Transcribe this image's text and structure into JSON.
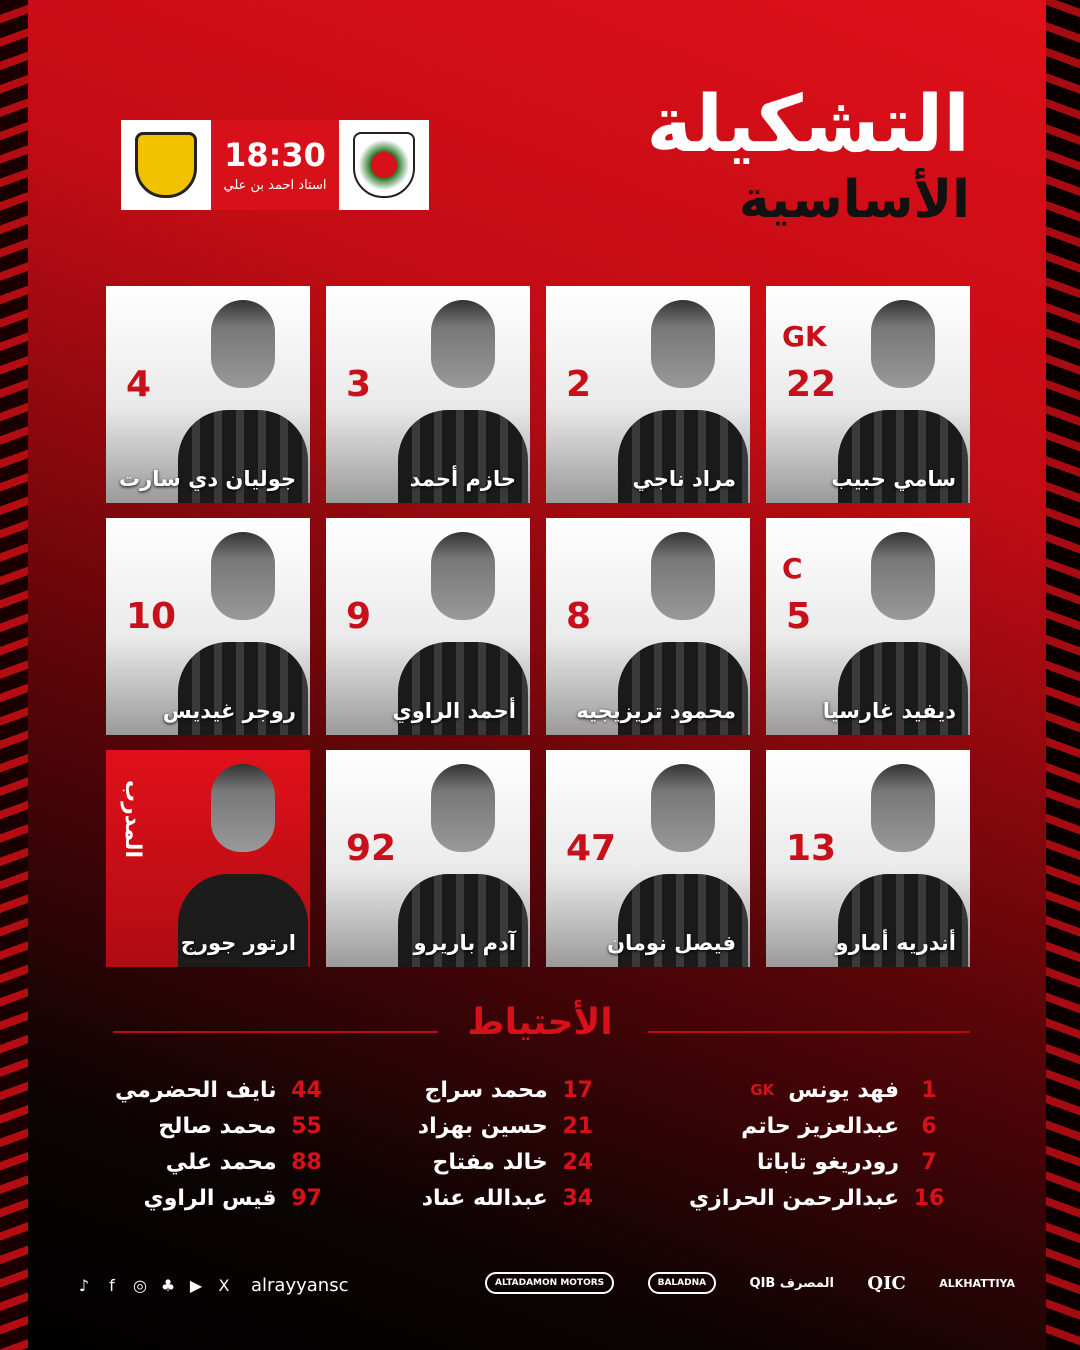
{
  "title": {
    "line1": "التشكيلة",
    "line2": "الأساسية"
  },
  "match": {
    "time": "18:30",
    "venue": "استاد احمد بن علي",
    "home_crest": "al-rayyan-crest",
    "away_crest": "qatar-sc-crest"
  },
  "starters": [
    {
      "number": "22",
      "role": "GK",
      "name": "سامي حبيب"
    },
    {
      "number": "2",
      "name": "مراد ناجي"
    },
    {
      "number": "3",
      "name": "حازم أحمد"
    },
    {
      "number": "4",
      "name": "جوليان دي سارت"
    },
    {
      "number": "5",
      "role": "C",
      "name": "ديفيد غارسيا"
    },
    {
      "number": "8",
      "name": "محمود تريزيجيه"
    },
    {
      "number": "9",
      "name": "أحمد الراوي"
    },
    {
      "number": "10",
      "name": "روجر غيديس"
    },
    {
      "number": "13",
      "name": "أندريه أمارو"
    },
    {
      "number": "47",
      "name": "فيصل نومان"
    },
    {
      "number": "92",
      "name": "آدم باريرو"
    }
  ],
  "coach": {
    "label": "المدرب",
    "name": "ارتور جورج"
  },
  "subs_title": "الأحتياط",
  "subs": [
    [
      {
        "number": "1",
        "name": "فهد يونس",
        "role": "GK"
      },
      {
        "number": "6",
        "name": "عبدالعزيز حاتم"
      },
      {
        "number": "7",
        "name": "رودريغو تاباتا"
      },
      {
        "number": "16",
        "name": "عبدالرحمن الحرازي"
      }
    ],
    [
      {
        "number": "17",
        "name": "محمد سراج"
      },
      {
        "number": "21",
        "name": "حسين بهزاد"
      },
      {
        "number": "24",
        "name": "خالد مفتاح"
      },
      {
        "number": "34",
        "name": "عبدالله عناد"
      }
    ],
    [
      {
        "number": "44",
        "name": "نايف الحضرمي"
      },
      {
        "number": "55",
        "name": "محمد صالح"
      },
      {
        "number": "88",
        "name": "محمد علي"
      },
      {
        "number": "97",
        "name": "قيس الراوي"
      }
    ]
  ],
  "social": {
    "handle": "alrayyansc",
    "icons": [
      "tiktok-icon",
      "facebook-icon",
      "instagram-icon",
      "snapchat-icon",
      "youtube-icon",
      "x-icon"
    ]
  },
  "sponsors": [
    "ALKHATTIYA",
    "QIC",
    "QIB المصرف",
    "BALADNA",
    "ALTADAMON MOTORS"
  ],
  "colors": {
    "accent": "#d8101a",
    "dark": "#0b0304"
  }
}
